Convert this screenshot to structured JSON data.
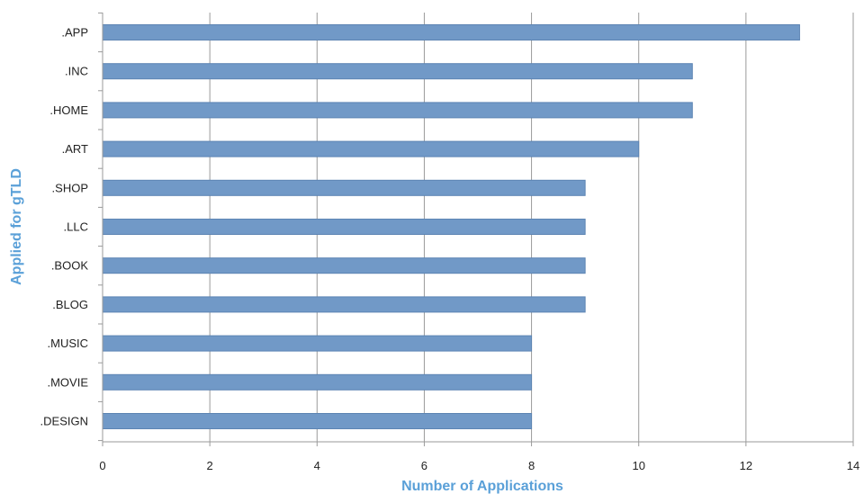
{
  "chart_data": {
    "type": "bar",
    "orientation": "horizontal",
    "categories": [
      ".APP",
      ".INC",
      ".HOME",
      ".ART",
      ".SHOP",
      ".LLC",
      ".BOOK",
      ".BLOG",
      ".MUSIC",
      ".MOVIE",
      ".DESIGN"
    ],
    "values": [
      13,
      11,
      11,
      10,
      9,
      9,
      9,
      9,
      8,
      8,
      8
    ],
    "title": "",
    "xlabel": "Number of Applications",
    "ylabel": "Applied for gTLD",
    "xlim": [
      0,
      14
    ],
    "xticks": [
      0,
      2,
      4,
      6,
      8,
      10,
      12,
      14
    ],
    "grid": "vertical",
    "legend": "none",
    "colors": {
      "bar": "#7199c7",
      "bar_edge": "#5c84b3",
      "axis_title": "#5aa0d8",
      "grid": "#9a9a9a",
      "axis_line": "#9a9a9a"
    }
  }
}
